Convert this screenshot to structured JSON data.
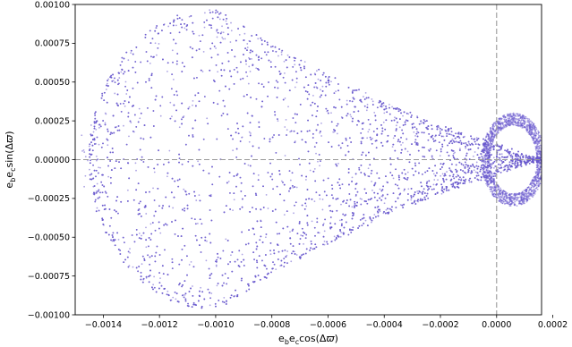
{
  "chart_data": {
    "type": "scatter",
    "xlabel": "e_b e_c cos(Δϖ)",
    "ylabel": "e_b e_c sin(Δϖ)",
    "xlabel_parts": {
      "base1": "e",
      "sub1": "b",
      "base2": "e",
      "sub2": "c",
      "func": "cos(Δ",
      "symbol": "ϖ",
      "close": ")"
    },
    "ylabel_parts": {
      "base1": "e",
      "sub1": "b",
      "base2": "e",
      "sub2": "c",
      "func": "sin(Δ",
      "symbol": "ϖ",
      "close": ")"
    },
    "xlim": [
      -0.0015,
      0.00016
    ],
    "ylim": [
      -0.001,
      0.001
    ],
    "xticks": [
      -0.0014,
      -0.0012,
      -0.001,
      -0.0008,
      -0.0006,
      -0.0004,
      -0.0002,
      0.0,
      0.0002
    ],
    "xtick_labels": [
      "−0.0014",
      "−0.0012",
      "−0.0010",
      "−0.0008",
      "−0.0006",
      "−0.0004",
      "−0.0002",
      "0.0000",
      "0.0002"
    ],
    "yticks": [
      -0.001,
      -0.00075,
      -0.0005,
      -0.00025,
      0.0,
      0.00025,
      0.0005,
      0.00075,
      0.001
    ],
    "ytick_labels": [
      "−0.00100",
      "−0.00075",
      "−0.00050",
      "−0.00025",
      "0.00000",
      "0.00025",
      "0.00050",
      "0.00075",
      "0.00100"
    ],
    "reference_lines": {
      "horizontal_y": 0.0,
      "vertical_x": 0.0,
      "style": "dashed",
      "color": "#999999"
    },
    "marker_color": "#6a5acd",
    "grid": false,
    "point_count": 9000,
    "distribution": {
      "region": "teardrop envelope: cusp near x=0.00015, widest near x=-0.001, left edge near x=-0.00145",
      "samples": [
        [
          -0.00145,
          0.00015
        ],
        [
          -0.0014,
          -2e-05
        ],
        [
          -0.0012,
          0.00075
        ],
        [
          -0.0011,
          0.00093
        ],
        [
          -0.001,
          0.00095
        ],
        [
          -0.001,
          -0.00095
        ],
        [
          -0.0008,
          0.00092
        ],
        [
          -0.0006,
          0.0008
        ],
        [
          -0.0004,
          0.00062
        ],
        [
          -0.0002,
          0.00045
        ],
        [
          0.0,
          0.00028
        ],
        [
          0.0001,
          0.00015
        ],
        [
          0.00015,
          0.0
        ],
        [
          0.0001,
          -0.00018
        ],
        [
          0.0,
          -0.0003
        ],
        [
          -0.0002,
          -0.0005
        ],
        [
          -0.0004,
          -0.0007
        ],
        [
          -0.0006,
          -0.00085
        ],
        [
          -0.0008,
          -0.00095
        ],
        [
          -0.0012,
          -0.0008
        ]
      ]
    }
  }
}
